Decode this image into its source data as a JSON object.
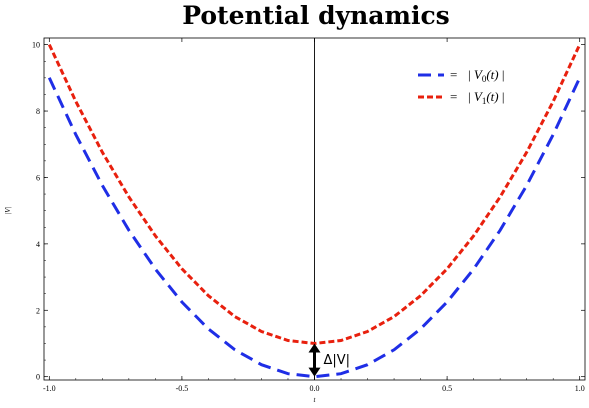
{
  "chart_data": {
    "type": "line",
    "title": "Potential dynamics",
    "xlabel": "t",
    "ylabel": "|V|",
    "xlim": [
      -1.02,
      1.02
    ],
    "ylim": [
      -0.1,
      10.2
    ],
    "xticks": [
      -1.0,
      -0.5,
      0.0,
      0.5,
      1.0
    ],
    "xtick_labels": [
      "-1.0",
      "-0.5",
      "0.0",
      "0.5",
      "1.0"
    ],
    "yticks": [
      0,
      2,
      4,
      6,
      8,
      10
    ],
    "ytick_labels": [
      "0",
      "2",
      "4",
      "6",
      "8",
      "10"
    ],
    "grid": false,
    "legend_position": "top-right",
    "series": [
      {
        "name": "|V0(t)|",
        "legend_equals": "=",
        "legend_label": [
          "|",
          "V",
          "0",
          "(t)",
          "|"
        ],
        "color": "#1f2ee6",
        "dash": "long-dash",
        "x": [
          -1.0,
          -0.9,
          -0.8,
          -0.7,
          -0.6,
          -0.5,
          -0.4,
          -0.3,
          -0.2,
          -0.1,
          0.0,
          0.1,
          0.2,
          0.3,
          0.4,
          0.5,
          0.6,
          0.7,
          0.8,
          0.9,
          1.0
        ],
        "y": [
          9.0,
          7.29,
          5.76,
          4.41,
          3.24,
          2.25,
          1.44,
          0.81,
          0.36,
          0.09,
          0.0,
          0.09,
          0.36,
          0.81,
          1.44,
          2.25,
          3.24,
          4.41,
          5.76,
          7.29,
          9.0
        ]
      },
      {
        "name": "|V1(t)|",
        "legend_equals": "=",
        "legend_label": [
          "|",
          "V",
          "1",
          "(t)",
          "|"
        ],
        "color": "#e8200e",
        "dash": "short-dash",
        "x": [
          -1.0,
          -0.9,
          -0.8,
          -0.7,
          -0.6,
          -0.5,
          -0.4,
          -0.3,
          -0.2,
          -0.1,
          0.0,
          0.1,
          0.2,
          0.3,
          0.4,
          0.5,
          0.6,
          0.7,
          0.8,
          0.9,
          1.0
        ],
        "y": [
          10.0,
          8.29,
          6.76,
          5.41,
          4.24,
          3.25,
          2.44,
          1.81,
          1.36,
          1.09,
          1.0,
          1.09,
          1.36,
          1.81,
          2.44,
          3.25,
          4.24,
          5.41,
          6.76,
          8.29,
          10.0
        ]
      }
    ],
    "annotations": [
      {
        "text": "Δ|V|",
        "type": "double-arrow",
        "x": 0.0,
        "y_from": 0.0,
        "y_to": 1.0
      }
    ]
  }
}
